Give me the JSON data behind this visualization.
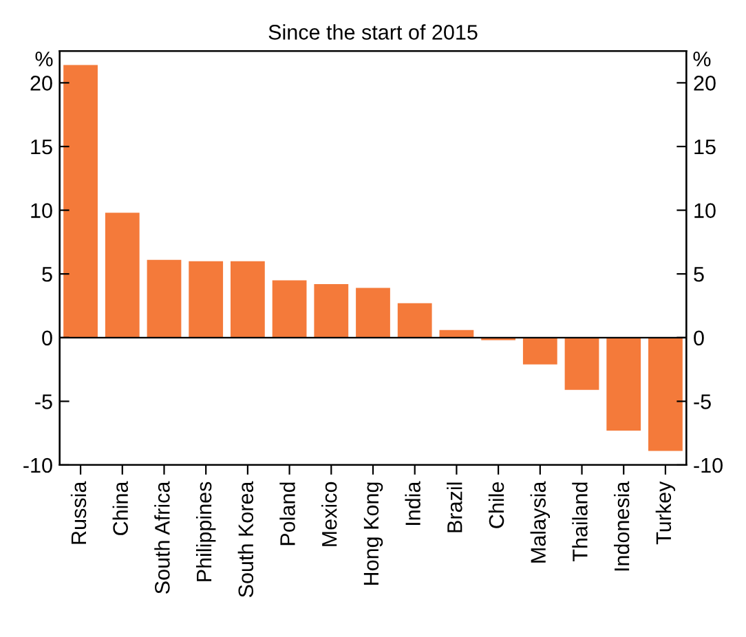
{
  "chart_data": {
    "type": "bar",
    "title": "Since the start of 2015",
    "categories": [
      "Russia",
      "China",
      "South Africa",
      "Philippines",
      "South Korea",
      "Poland",
      "Mexico",
      "Hong Kong",
      "India",
      "Brazil",
      "Chile",
      "Malaysia",
      "Thailand",
      "Indonesia",
      "Turkey"
    ],
    "values": [
      21.4,
      9.8,
      6.1,
      6.0,
      6.0,
      4.5,
      4.2,
      3.9,
      2.7,
      0.6,
      -0.2,
      -2.1,
      -4.1,
      -7.3,
      -8.9
    ],
    "color": "#f47a3a",
    "ylabel": "%",
    "y2label": "%",
    "ylim": [
      -10,
      22.5
    ],
    "yticks": [
      -10,
      -5,
      0,
      5,
      10,
      15,
      20
    ],
    "y2lim": [
      -10,
      22.5
    ],
    "y2ticks": [
      -10,
      -5,
      0,
      5,
      10,
      15,
      20
    ]
  }
}
